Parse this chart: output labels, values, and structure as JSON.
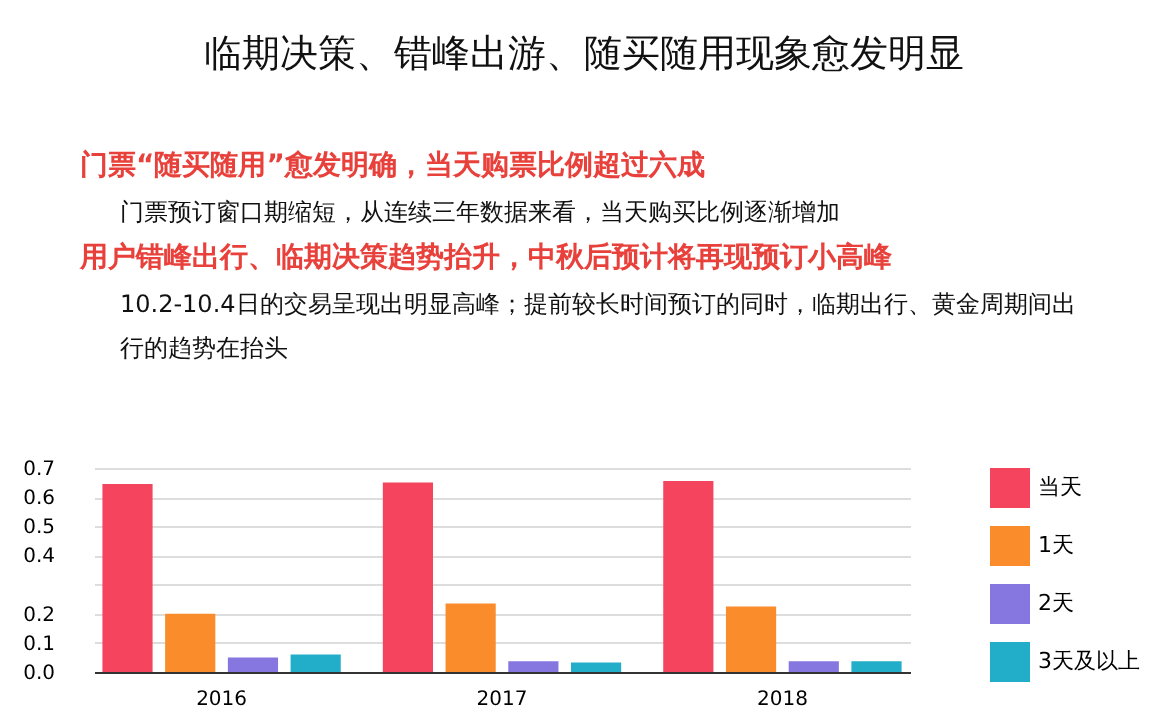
{
  "chart_data": {
    "type": "bar",
    "title": "临期决策、错峰出游、随买随用现象愈发明显",
    "annotations": [
      "门票“随买随用”愈发明确，当天购票比例超过六成",
      "门票预订窗口期缩短，从连续三年数据来看，当天购买比例逐渐增加",
      "用户错峰出行、临期决策趋势抬升，中秋后预计将再现预订小高峰",
      "10.2-10.4日的交易呈现出明显高峰；提前较长时间预订的同时，临期出行、黄金周期间出行的趋势在抬头"
    ],
    "categories": [
      "2016",
      "2017",
      "2018"
    ],
    "series": [
      {
        "name": "当天",
        "color": "#f5445e",
        "values": [
          0.645,
          0.65,
          0.655
        ]
      },
      {
        "name": "1天",
        "color": "#fb8c2c",
        "values": [
          0.2,
          0.235,
          0.225
        ]
      },
      {
        "name": "2天",
        "color": "#8677e0",
        "values": [
          0.05,
          0.037,
          0.037
        ]
      },
      {
        "name": "3天及以上",
        "color": "#22adc8",
        "values": [
          0.06,
          0.033,
          0.037
        ]
      }
    ],
    "ylim": [
      0,
      0.7
    ],
    "yticks": [
      {
        "value": 0,
        "label": "0.0"
      },
      {
        "value": 0.1,
        "label": "0.1"
      },
      {
        "value": 0.2,
        "label": "0.2"
      },
      {
        "value": 0.3,
        "label": null
      },
      {
        "value": 0.4,
        "label": "0.4"
      },
      {
        "value": 0.5,
        "label": "0.5"
      },
      {
        "value": 0.6,
        "label": "0.6"
      },
      {
        "value": 0.7,
        "label": "0.7"
      }
    ],
    "grid": "y",
    "legend": "right"
  }
}
